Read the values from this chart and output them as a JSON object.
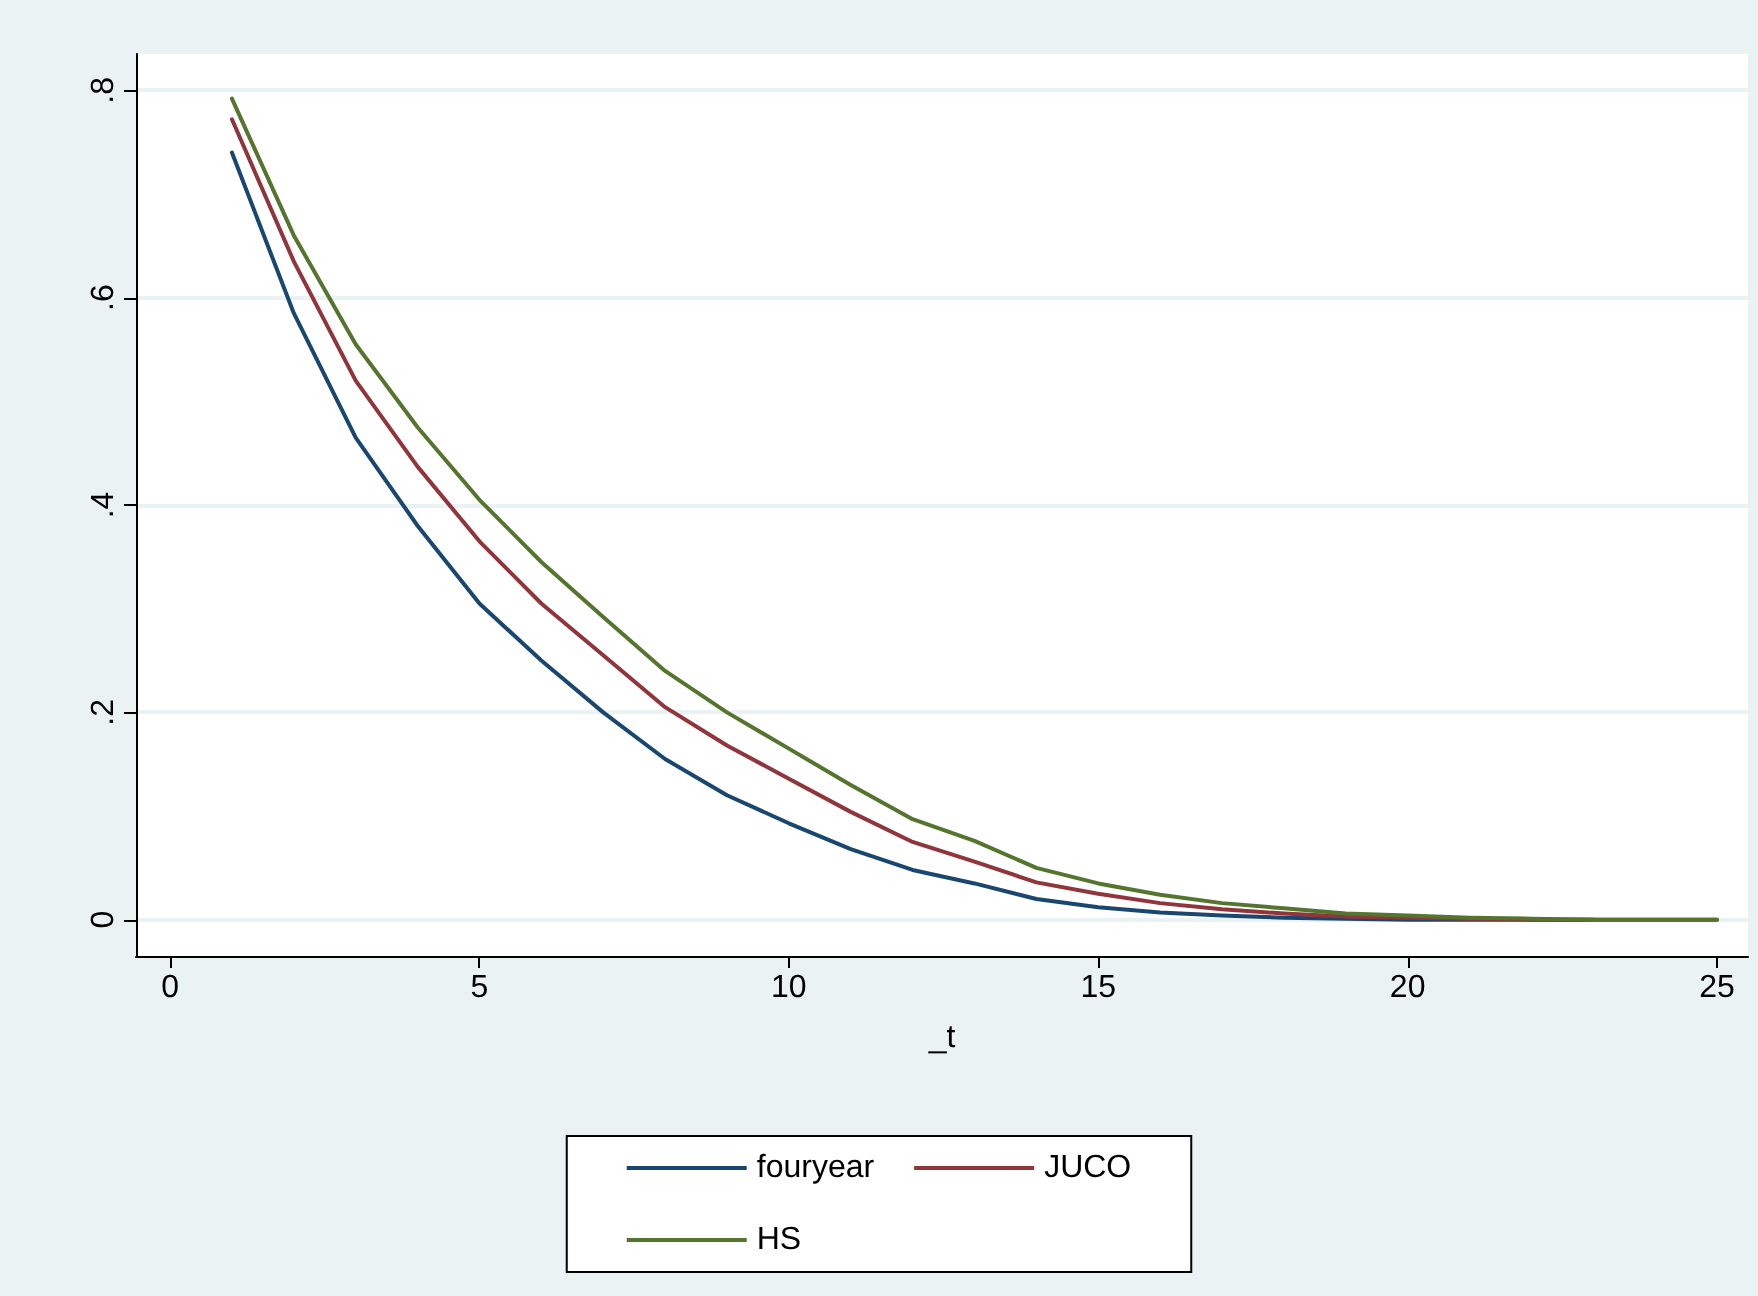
{
  "chart_data": {
    "type": "line",
    "xlabel": "_t",
    "x": [
      1,
      2,
      3,
      4,
      5,
      6,
      7,
      8,
      9,
      10,
      11,
      12,
      13,
      14,
      15,
      16,
      17,
      18,
      19,
      20,
      21,
      22,
      23,
      24,
      25
    ],
    "series": [
      {
        "name": "fouryear",
        "color": "#1a476f",
        "values": [
          0.74,
          0.585,
          0.465,
          0.38,
          0.305,
          0.25,
          0.2,
          0.155,
          0.12,
          0.093,
          0.068,
          0.048,
          0.035,
          0.02,
          0.012,
          0.007,
          0.004,
          0.002,
          0.001,
          0,
          0,
          0,
          0,
          null,
          null
        ]
      },
      {
        "name": "JUCO",
        "color": "#90353b",
        "values": [
          0.772,
          0.635,
          0.52,
          0.437,
          0.365,
          0.305,
          0.255,
          0.205,
          0.168,
          0.136,
          0.104,
          0.075,
          0.056,
          0.036,
          0.025,
          0.016,
          0.01,
          0.006,
          0.003,
          0.002,
          0.001,
          0,
          0,
          0,
          0
        ]
      },
      {
        "name": "HS",
        "color": "#55752f",
        "values": [
          0.792,
          0.66,
          0.555,
          0.475,
          0.405,
          0.345,
          0.292,
          0.24,
          0.2,
          0.165,
          0.13,
          0.097,
          0.076,
          0.05,
          0.035,
          0.024,
          0.016,
          0.011,
          0.006,
          0.004,
          0.002,
          0.001,
          0,
          0,
          0
        ]
      }
    ],
    "xlim": [
      -0.55,
      25.5
    ],
    "xticks": [
      0,
      5,
      10,
      15,
      20,
      25
    ],
    "ylim": [
      -0.035,
      0.835
    ],
    "yticks": [
      {
        "value": 0,
        "label": "0"
      },
      {
        "value": 0.2,
        "label": ".2"
      },
      {
        "value": 0.4,
        "label": ".4"
      },
      {
        "value": 0.6,
        "label": ".6"
      },
      {
        "value": 0.8,
        "label": ".8"
      }
    ],
    "grid": "y",
    "legend": "bottom",
    "marker": "none",
    "line_style": "solid"
  }
}
